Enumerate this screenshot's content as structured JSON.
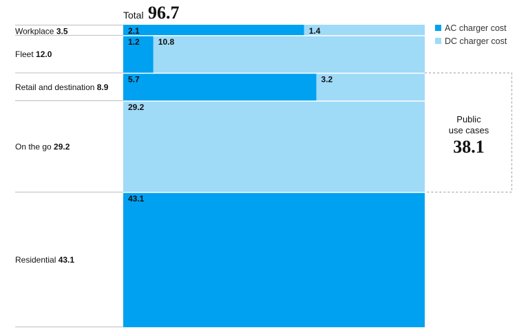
{
  "chart_data": {
    "type": "bar",
    "total": {
      "label": "Total",
      "value": "96.7"
    },
    "categories": [
      "Workplace",
      "Fleet",
      "Retail and destination",
      "On the go",
      "Residential"
    ],
    "category_totals": [
      "3.5",
      "12.0",
      "8.9",
      "29.2",
      "43.1"
    ],
    "series": [
      {
        "name": "AC charger cost",
        "color": "#00a1f1",
        "values": [
          2.1,
          1.2,
          5.7,
          0,
          43.1
        ],
        "labels": [
          "2.1",
          "1.2",
          "5.7",
          "",
          "43.1"
        ]
      },
      {
        "name": "DC charger cost",
        "color": "#9fdaf7",
        "values": [
          1.4,
          10.8,
          3.2,
          29.2,
          0
        ],
        "labels": [
          "1.4",
          "10.8",
          "3.2",
          "29.2",
          ""
        ]
      }
    ],
    "legend_position": "top-right",
    "public_group": {
      "label_line1": "Public",
      "label_line2": "use cases",
      "value": "38.1",
      "categories": [
        "Retail and destination",
        "On the go"
      ]
    }
  }
}
